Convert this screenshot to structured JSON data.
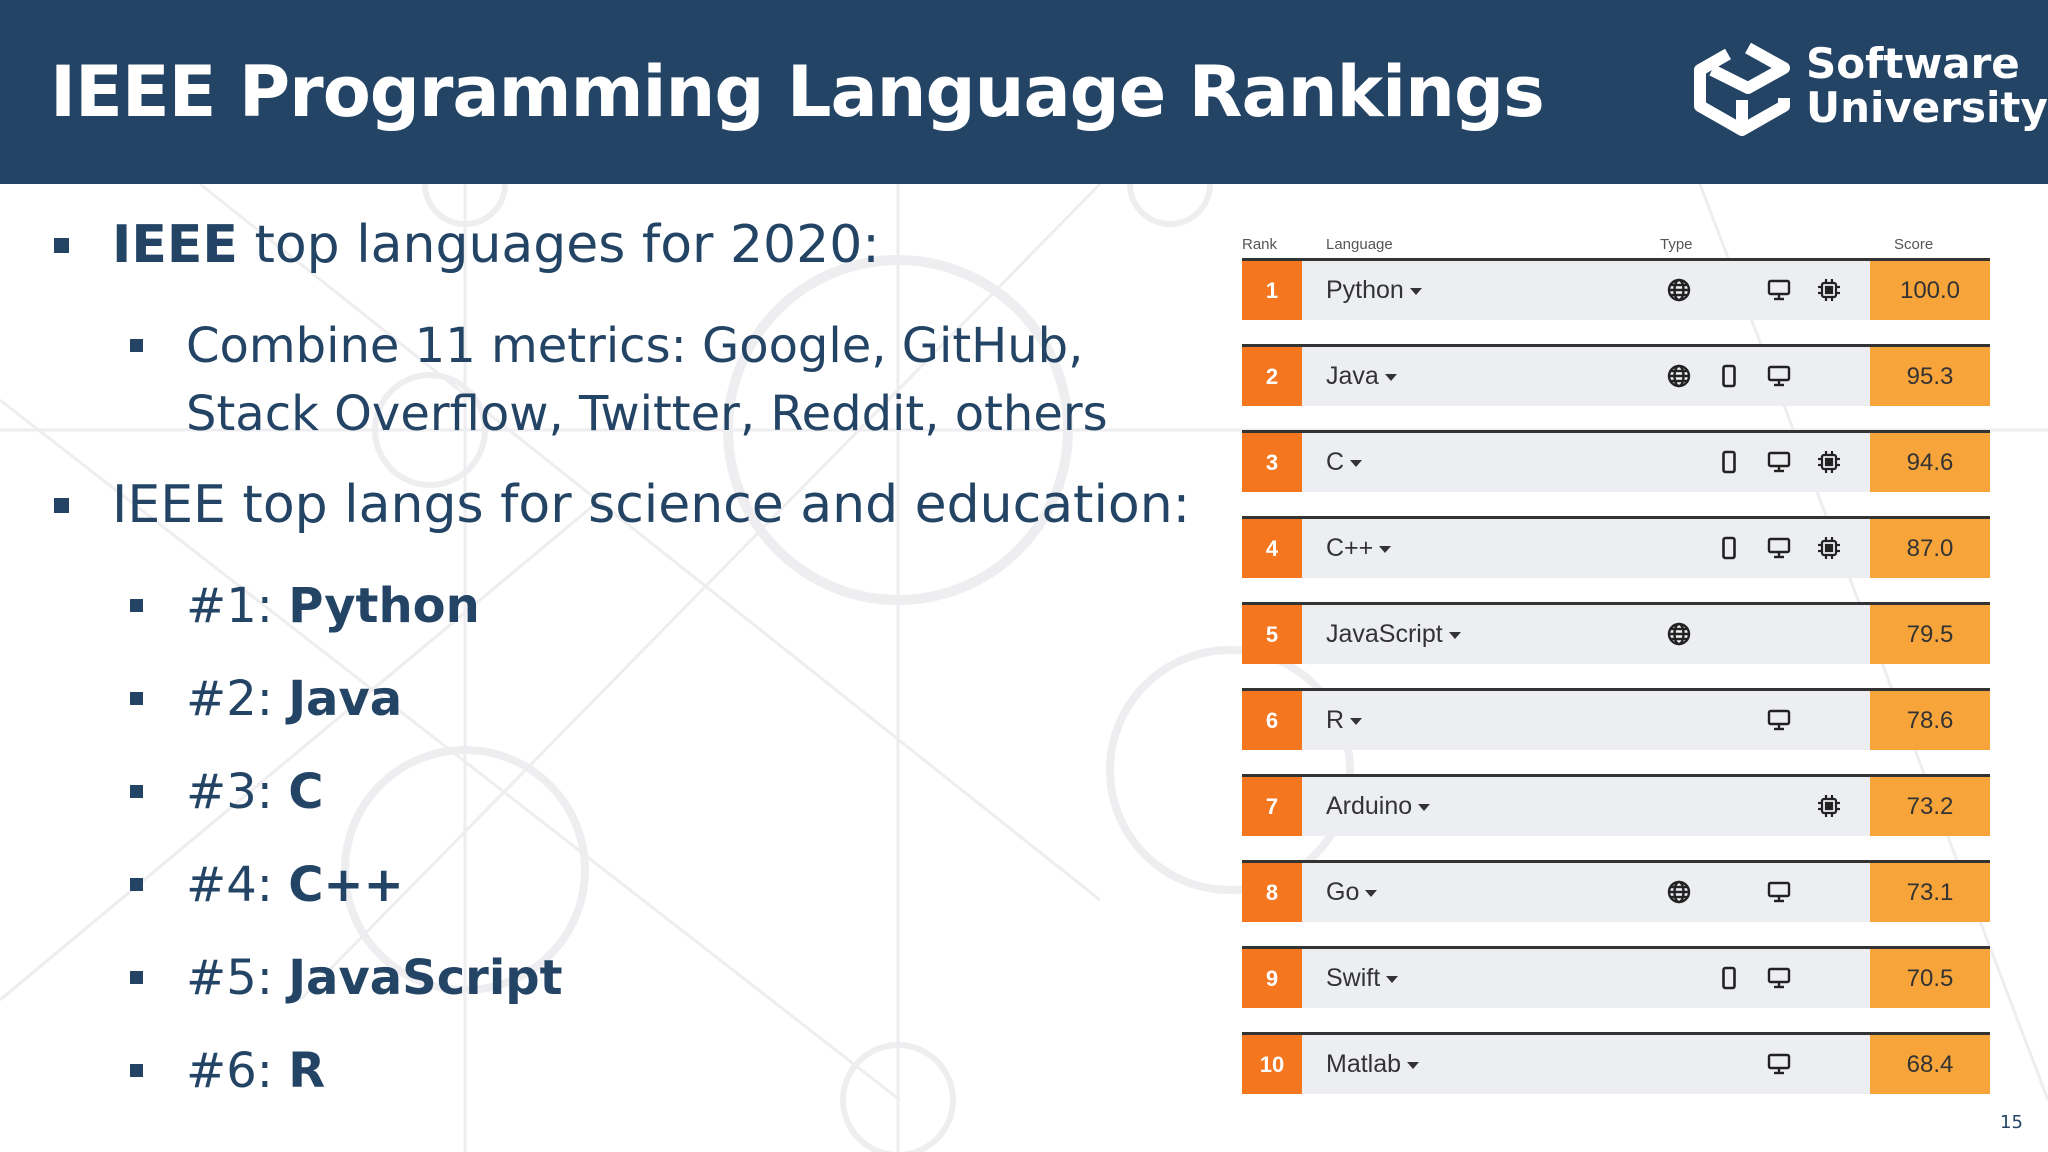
{
  "slide": {
    "title": "IEEE Programming Language Rankings",
    "page_number": "15"
  },
  "logo": {
    "line1": "Software",
    "line2": "University"
  },
  "bullets": {
    "b1_strong": "IEEE",
    "b1_text": " top languages for 2020:",
    "b1_sub_line1": "Combine 11 metrics: Google, GitHub,",
    "b1_sub_line2": "Stack Overflow, Twitter, Reddit, others",
    "b2_text": "IEEE top langs for science and education:",
    "items": [
      {
        "prefix": "#1: ",
        "lang": "Python"
      },
      {
        "prefix": "#2: ",
        "lang": "Java"
      },
      {
        "prefix": "#3: ",
        "lang": "C"
      },
      {
        "prefix": "#4: ",
        "lang": "C++"
      },
      {
        "prefix": "#5: ",
        "lang": "JavaScript"
      },
      {
        "prefix": "#6: ",
        "lang": "R"
      }
    ]
  },
  "ranking": {
    "headers": {
      "rank": "Rank",
      "language": "Language",
      "type": "Type",
      "score": "Score"
    },
    "colors": {
      "rank_bg": "#f4761f",
      "score_bg": "#f7a53b",
      "row_bg": "#eceef2"
    },
    "rows": [
      {
        "rank": "1",
        "language": "Python",
        "score": "100.0",
        "types": [
          "globe-icon",
          "desktop-icon",
          "chip-icon"
        ]
      },
      {
        "rank": "2",
        "language": "Java",
        "score": "95.3",
        "types": [
          "globe-icon",
          "mobile-icon",
          "desktop-icon"
        ]
      },
      {
        "rank": "3",
        "language": "C",
        "score": "94.6",
        "types": [
          "mobile-icon",
          "desktop-icon",
          "chip-icon"
        ]
      },
      {
        "rank": "4",
        "language": "C++",
        "score": "87.0",
        "types": [
          "mobile-icon",
          "desktop-icon",
          "chip-icon"
        ]
      },
      {
        "rank": "5",
        "language": "JavaScript",
        "score": "79.5",
        "types": [
          "globe-icon"
        ]
      },
      {
        "rank": "6",
        "language": "R",
        "score": "78.6",
        "types": [
          "desktop-icon"
        ]
      },
      {
        "rank": "7",
        "language": "Arduino",
        "score": "73.2",
        "types": [
          "chip-icon"
        ]
      },
      {
        "rank": "8",
        "language": "Go",
        "score": "73.1",
        "types": [
          "globe-icon",
          "desktop-icon"
        ]
      },
      {
        "rank": "9",
        "language": "Swift",
        "score": "70.5",
        "types": [
          "mobile-icon",
          "desktop-icon"
        ]
      },
      {
        "rank": "10",
        "language": "Matlab",
        "score": "68.4",
        "types": [
          "desktop-icon"
        ]
      }
    ]
  }
}
